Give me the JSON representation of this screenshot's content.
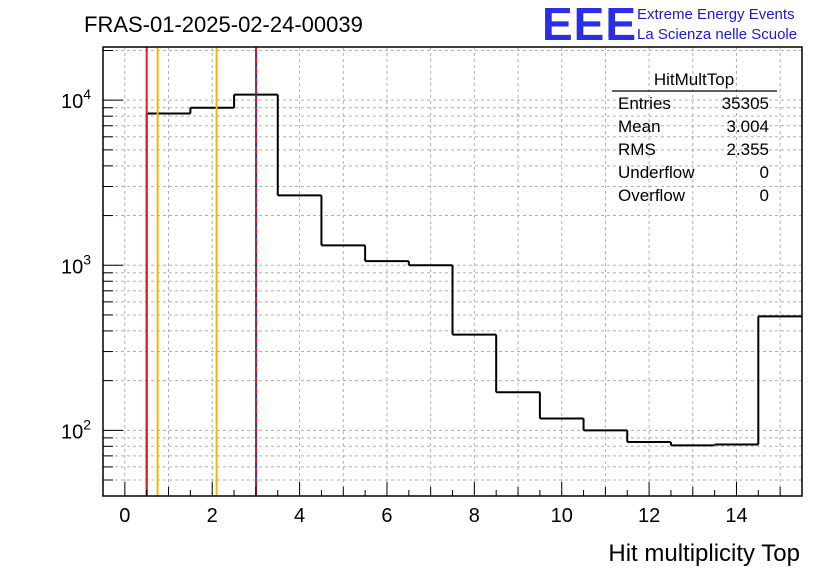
{
  "chart_data": {
    "type": "histogram",
    "title": "FRAS-01-2025-02-24-00039",
    "xlabel": "Hit multiplicity Top",
    "ylabel": "",
    "y_scale": "log",
    "xlim": [
      -0.5,
      15.5
    ],
    "ylim": [
      40,
      21000
    ],
    "x_ticks": [
      0,
      2,
      4,
      6,
      8,
      10,
      12,
      14
    ],
    "x_tick_labels": [
      "0",
      "2",
      "4",
      "6",
      "8",
      "10",
      "12",
      "14"
    ],
    "y_major_ticks": [
      {
        "value": 100,
        "base": "10",
        "exp": "2"
      },
      {
        "value": 1000,
        "base": "10",
        "exp": "3"
      },
      {
        "value": 10000,
        "base": "10",
        "exp": "4"
      }
    ],
    "grid": true,
    "bins": [
      {
        "low": -0.5,
        "high": 0.5,
        "count": 0
      },
      {
        "low": 0.5,
        "high": 1.5,
        "count": 8300
      },
      {
        "low": 1.5,
        "high": 2.5,
        "count": 9000
      },
      {
        "low": 2.5,
        "high": 3.5,
        "count": 10800
      },
      {
        "low": 3.5,
        "high": 4.5,
        "count": 2650
      },
      {
        "low": 4.5,
        "high": 5.5,
        "count": 1320
      },
      {
        "low": 5.5,
        "high": 6.5,
        "count": 1060
      },
      {
        "low": 6.5,
        "high": 7.5,
        "count": 1000
      },
      {
        "low": 7.5,
        "high": 8.5,
        "count": 380
      },
      {
        "low": 8.5,
        "high": 9.5,
        "count": 170
      },
      {
        "low": 9.5,
        "high": 10.5,
        "count": 118
      },
      {
        "low": 10.5,
        "high": 11.5,
        "count": 100
      },
      {
        "low": 11.5,
        "high": 12.5,
        "count": 85
      },
      {
        "low": 12.5,
        "high": 13.5,
        "count": 81
      },
      {
        "low": 13.5,
        "high": 14.5,
        "count": 82
      },
      {
        "low": 14.5,
        "high": 15.5,
        "count": 490
      }
    ],
    "reference_lines": [
      {
        "name": "red-solid-line",
        "x": 0.5,
        "color": "#e02020",
        "style": "solid"
      },
      {
        "name": "orange-line-1",
        "x": 0.75,
        "color": "#f5b800",
        "style": "solid"
      },
      {
        "name": "orange-line-2",
        "x": 2.1,
        "color": "#f5b800",
        "style": "solid"
      },
      {
        "name": "dashed-mean-line",
        "x": 3.004,
        "color": "#e02020",
        "dash_color": "#2030e0",
        "style": "dashed"
      }
    ],
    "stats_box": {
      "title": "HitMultTop",
      "rows": [
        {
          "label": "Entries",
          "value": "35305"
        },
        {
          "label": "Mean",
          "value": "3.004"
        },
        {
          "label": "RMS",
          "value": "2.355"
        },
        {
          "label": "Underflow",
          "value": "0"
        },
        {
          "label": "Overflow",
          "value": "0"
        }
      ]
    }
  },
  "logo": {
    "mark": "EEE",
    "line1": "Extreme Energy Events",
    "line2": "La Scienza nelle Scuole",
    "color": "#2a2ee6"
  }
}
